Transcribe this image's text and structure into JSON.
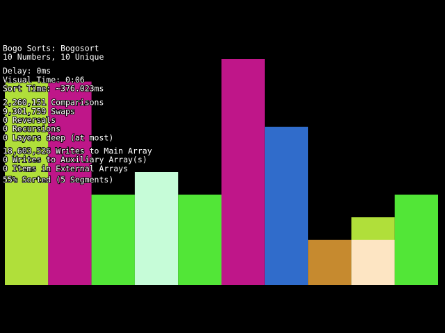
{
  "stats": {
    "groups": [
      [
        "Bogo Sorts: Bogosort",
        "10 Numbers, 10 Unique"
      ],
      [
        "Delay: 0ms",
        "Visual Time: 0:06",
        "Sort Time: ~376.023ms"
      ],
      [
        "2,260,151 Comparisons",
        "9,301,759 Swaps",
        "0 Reversals",
        "0 Recursions",
        "0 Layers deep (at most)"
      ],
      [
        "18,603,526 Writes to Main Array",
        "0 Writes to Auxiliary Array(s)",
        "0 Items in External Arrays"
      ],
      [
        "55% Sorted (5 Segments)"
      ]
    ]
  },
  "array": {
    "max": 10,
    "bars": [
      {
        "value": 9,
        "color": "#b0df3a"
      },
      {
        "value": 9,
        "color": "#bf1689"
      },
      {
        "value": 4,
        "color": "#52e637"
      },
      {
        "value": 5,
        "color": "#c6fcd8"
      },
      {
        "value": 4,
        "color": "#52e637"
      },
      {
        "value": 10,
        "color": "#bf1689"
      },
      {
        "value": 7,
        "color": "#306ccb"
      },
      {
        "value": 2,
        "color": "#c68a2f"
      },
      {
        "value": 3,
        "color": "#b0df3a",
        "inner": {
          "value": 2,
          "color": "#fde5c3"
        }
      },
      {
        "value": 4,
        "color": "#52e637"
      }
    ]
  }
}
